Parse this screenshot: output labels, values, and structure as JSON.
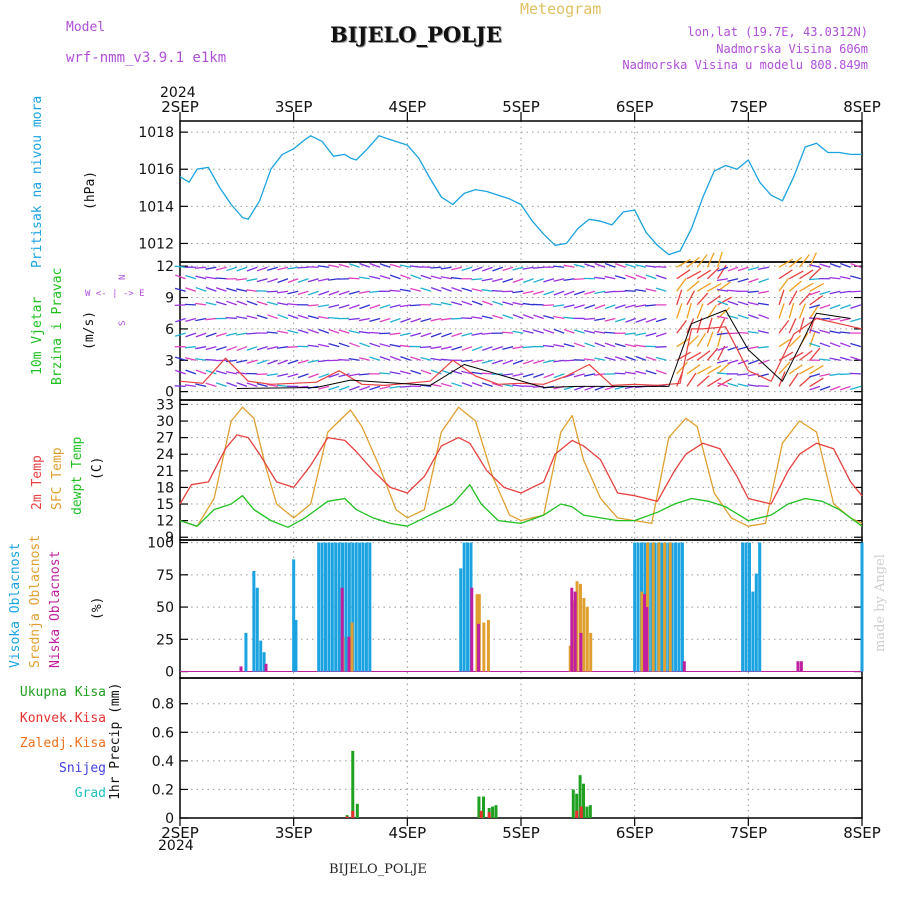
{
  "header": {
    "model_label": "Model",
    "model_name": "wrf-nmm_v3.9.1  e1km",
    "meteogram": "Meteogram",
    "station": "BIJELO_POLJE",
    "lonlat": "lon,lat (19.7E, 43.0312N)",
    "elevation": "Nadmorska Visina 606m",
    "model_elevation": "Nadmorska Visina u modelu 808.849m",
    "year_top": "2024",
    "year_bottom": "2024",
    "footer_station": "BIJELO_POLJE",
    "watermark": "made by Angel"
  },
  "panel_labels": {
    "pressure": "Pritisak na nivou mora",
    "pressure_unit": "(hPa)",
    "wind_a": "10m Vjetar",
    "wind_b": "Brzina i Pravac",
    "wind_unit": "(m/s)",
    "compass": "W <- | -> E",
    "compass_n": "N",
    "compass_s": "S",
    "temp_2m": "2m Temp",
    "temp_sfc": "SFC Temp",
    "temp_dew": "dewpt Temp",
    "temp_unit": "(C)",
    "cloud_high": "Visoka Oblacnost",
    "cloud_mid": "Srednja Oblacnost",
    "cloud_low": "Niska Oblacnost",
    "cloud_unit": "(%)",
    "precip_unit": "1hr Precip (mm)",
    "precip_total": "Ukupna Kisa",
    "precip_conv": "Konvek.Kisa",
    "precip_frz": "Zaledj.Kisa",
    "precip_snow": "Snijeg",
    "precip_grad": "Grad"
  },
  "colors": {
    "pressure": "#1aa3e0",
    "temp2m": "#e84040",
    "sfc": "#e0a030",
    "dew": "#20c020",
    "cloud_high": "#1aa3e0",
    "cloud_mid": "#e0a030",
    "cloud_low": "#c020a0",
    "precip_total": "#20a020",
    "precip_conv": "#e83030",
    "precip_frz": "#f07020",
    "precip_snow": "#4040e0",
    "precip_grad": "#20c0c0",
    "wind_speed": "#e84040",
    "wind_gust": "#000000",
    "header_text": "#b04fd8",
    "meteogram_text": "#e0c060"
  },
  "chart_data": [
    {
      "type": "line",
      "name": "pressure",
      "x_start": "2SEP",
      "x_end": "8SEP",
      "x_ticks": [
        "2SEP",
        "3SEP",
        "4SEP",
        "5SEP",
        "6SEP",
        "7SEP",
        "8SEP"
      ],
      "ylim": [
        1011,
        1018.6
      ],
      "y_ticks": [
        1012,
        1014,
        1016,
        1018
      ],
      "x": [
        0,
        0.08,
        0.15,
        0.25,
        0.35,
        0.45,
        0.55,
        0.6,
        0.7,
        0.8,
        0.9,
        1.0,
        1.1,
        1.15,
        1.25,
        1.35,
        1.45,
        1.5,
        1.55,
        1.65,
        1.75,
        1.85,
        1.95,
        2.0,
        2.1,
        2.2,
        2.3,
        2.4,
        2.5,
        2.6,
        2.7,
        2.8,
        2.9,
        3.0,
        3.1,
        3.2,
        3.3,
        3.4,
        3.5,
        3.6,
        3.7,
        3.8,
        3.9,
        4.0,
        4.1,
        4.2,
        4.3,
        4.4,
        4.5,
        4.6,
        4.7,
        4.8,
        4.9,
        5.0,
        5.1,
        5.2,
        5.3,
        5.4,
        5.5,
        5.6,
        5.7,
        5.8,
        5.9,
        6.0
      ],
      "values": [
        1015.6,
        1015.3,
        1016.0,
        1016.1,
        1015.0,
        1014.1,
        1013.4,
        1013.3,
        1014.3,
        1016.0,
        1016.8,
        1017.1,
        1017.6,
        1017.8,
        1017.5,
        1016.7,
        1016.8,
        1016.6,
        1016.5,
        1017.1,
        1017.8,
        1017.6,
        1017.4,
        1017.3,
        1016.6,
        1015.5,
        1014.5,
        1014.1,
        1014.7,
        1014.9,
        1014.8,
        1014.6,
        1014.4,
        1014.1,
        1013.2,
        1012.5,
        1011.9,
        1012.0,
        1012.8,
        1013.3,
        1013.2,
        1013.0,
        1013.7,
        1013.8,
        1012.6,
        1011.9,
        1011.4,
        1011.6,
        1012.8,
        1014.5,
        1015.9,
        1016.2,
        1016.0,
        1016.5,
        1015.3,
        1014.6,
        1014.3,
        1015.6,
        1017.2,
        1017.4,
        1016.9,
        1016.9,
        1016.8,
        1016.8
      ]
    },
    {
      "type": "line",
      "name": "wind",
      "x_start": "2SEP",
      "x_end": "8SEP",
      "x_ticks": [
        "2SEP",
        "3SEP",
        "4SEP",
        "5SEP",
        "6SEP",
        "7SEP",
        "8SEP"
      ],
      "ylim": [
        -0.8,
        12.4
      ],
      "y_ticks": [
        0,
        3,
        6,
        9,
        12
      ],
      "series": [
        {
          "name": "speed",
          "x": [
            0,
            0.2,
            0.4,
            0.6,
            0.8,
            1.0,
            1.2,
            1.4,
            1.6,
            1.8,
            2.0,
            2.2,
            2.4,
            2.6,
            2.8,
            3.0,
            3.2,
            3.4,
            3.6,
            3.8,
            4.0,
            4.2,
            4.4,
            4.5,
            4.6,
            4.8,
            5.0,
            5.2,
            5.4,
            5.6,
            5.8,
            6.0
          ],
          "values": [
            1.0,
            0.8,
            3.2,
            1.0,
            0.7,
            0.8,
            0.9,
            2.0,
            0.7,
            0.6,
            0.8,
            1.0,
            3.0,
            1.5,
            0.7,
            0.8,
            0.7,
            1.5,
            2.6,
            0.6,
            0.7,
            0.6,
            0.8,
            6.0,
            6.0,
            6.2,
            2.0,
            1.0,
            5.5,
            7.0,
            6.5,
            6.0
          ]
        },
        {
          "name": "gust",
          "x": [
            0.5,
            1.2,
            1.5,
            2.2,
            2.5,
            3.2,
            3.5,
            4.3,
            4.5,
            4.8,
            5.0,
            5.3,
            5.6,
            5.9
          ],
          "values": [
            0.3,
            0.4,
            1.1,
            0.6,
            2.6,
            0.4,
            0.5,
            0.5,
            6.5,
            7.8,
            4.0,
            1.0,
            7.5,
            7.0
          ]
        }
      ]
    },
    {
      "type": "line",
      "name": "temperature",
      "x_start": "2SEP",
      "x_end": "8SEP",
      "x_ticks": [
        "2SEP",
        "3SEP",
        "4SEP",
        "5SEP",
        "6SEP",
        "7SEP",
        "8SEP"
      ],
      "ylim": [
        8.5,
        33.8
      ],
      "y_ticks": [
        9,
        12,
        15,
        18,
        21,
        24,
        27,
        30,
        33
      ],
      "series": [
        {
          "name": "2m",
          "x": [
            0,
            0.1,
            0.25,
            0.4,
            0.5,
            0.6,
            0.7,
            0.85,
            1.0,
            1.15,
            1.3,
            1.45,
            1.55,
            1.7,
            1.85,
            2.0,
            2.15,
            2.3,
            2.45,
            2.55,
            2.7,
            2.85,
            3.0,
            3.2,
            3.3,
            3.45,
            3.55,
            3.7,
            3.85,
            4.0,
            4.2,
            4.35,
            4.45,
            4.6,
            4.75,
            4.9,
            5.0,
            5.2,
            5.35,
            5.45,
            5.6,
            5.75,
            5.9,
            6.0
          ],
          "values": [
            15.0,
            18.5,
            19.0,
            25.0,
            27.5,
            27.0,
            24.0,
            19.0,
            18.0,
            22.0,
            27.0,
            26.5,
            24.5,
            21.0,
            18.0,
            17.0,
            20.0,
            25.5,
            27.0,
            26.0,
            21.0,
            18.0,
            17.0,
            19.0,
            24.0,
            26.5,
            25.5,
            23.0,
            17.0,
            16.5,
            15.5,
            21.0,
            24.0,
            26.0,
            25.0,
            20.0,
            16.0,
            15.0,
            21.0,
            24.0,
            26.0,
            25.0,
            19.0,
            16.5
          ]
        },
        {
          "name": "sfc",
          "x": [
            0,
            0.15,
            0.3,
            0.45,
            0.55,
            0.65,
            0.75,
            0.85,
            1.0,
            1.15,
            1.3,
            1.4,
            1.5,
            1.6,
            1.75,
            1.9,
            2.0,
            2.15,
            2.3,
            2.45,
            2.6,
            2.75,
            2.9,
            3.0,
            3.2,
            3.35,
            3.45,
            3.55,
            3.7,
            3.85,
            4.0,
            4.15,
            4.3,
            4.45,
            4.55,
            4.7,
            4.85,
            5.0,
            5.15,
            5.3,
            5.45,
            5.6,
            5.75,
            5.9,
            6.0
          ],
          "values": [
            12.0,
            11.0,
            16.0,
            30.0,
            32.5,
            30.5,
            22.0,
            15.0,
            12.5,
            15.0,
            28.0,
            30.0,
            32.0,
            29.0,
            22.0,
            14.0,
            12.5,
            14.0,
            28.0,
            32.5,
            30.0,
            20.0,
            13.0,
            12.0,
            13.0,
            28.0,
            31.0,
            23.0,
            16.0,
            12.5,
            12.0,
            11.5,
            27.0,
            30.5,
            29.0,
            17.0,
            12.5,
            11.0,
            11.5,
            26.0,
            30.0,
            28.0,
            15.0,
            12.5,
            11.5
          ]
        },
        {
          "name": "dewpt",
          "x": [
            0,
            0.15,
            0.3,
            0.45,
            0.55,
            0.65,
            0.8,
            0.95,
            1.1,
            1.3,
            1.45,
            1.55,
            1.7,
            1.85,
            2.0,
            2.2,
            2.4,
            2.55,
            2.65,
            2.8,
            3.0,
            3.2,
            3.35,
            3.45,
            3.55,
            3.7,
            3.85,
            4.0,
            4.2,
            4.35,
            4.5,
            4.65,
            4.8,
            5.0,
            5.2,
            5.35,
            5.5,
            5.65,
            5.8,
            6.0
          ],
          "values": [
            12.0,
            11.0,
            14.0,
            15.0,
            16.5,
            14.0,
            12.0,
            10.8,
            12.5,
            15.5,
            16.0,
            14.0,
            12.5,
            11.5,
            11.0,
            13.0,
            15.0,
            18.5,
            15.0,
            12.0,
            11.5,
            13.0,
            15.0,
            14.5,
            13.0,
            12.5,
            12.0,
            12.0,
            13.5,
            15.0,
            16.0,
            15.5,
            14.5,
            12.0,
            13.0,
            15.0,
            16.0,
            15.5,
            14.0,
            11.0
          ]
        }
      ]
    },
    {
      "type": "bar",
      "name": "clouds",
      "x_start": "2SEP",
      "x_end": "8SEP",
      "x_ticks": [
        "2SEP",
        "3SEP",
        "4SEP",
        "5SEP",
        "6SEP",
        "7SEP",
        "8SEP"
      ],
      "ylim": [
        -5,
        102
      ],
      "y_ticks": [
        0,
        25,
        50,
        75,
        100
      ],
      "series": [
        {
          "name": "high",
          "x": [
            0.58,
            0.65,
            0.68,
            0.71,
            0.74,
            1.0,
            1.02,
            1.22,
            1.25,
            1.28,
            1.31,
            1.34,
            1.37,
            1.4,
            1.43,
            1.46,
            1.49,
            1.52,
            1.55,
            1.58,
            1.61,
            1.64,
            1.67,
            2.47,
            2.5,
            2.53,
            2.56,
            4.0,
            4.03,
            4.06,
            4.09,
            4.12,
            4.15,
            4.18,
            4.21,
            4.24,
            4.27,
            4.3,
            4.33,
            4.36,
            4.39,
            4.42,
            4.95,
            4.98,
            5.01,
            5.04,
            5.07,
            5.1,
            6.0
          ],
          "values": [
            30,
            78,
            65,
            24,
            15,
            87,
            40,
            100,
            100,
            100,
            100,
            100,
            100,
            100,
            100,
            100,
            100,
            100,
            100,
            100,
            100,
            100,
            100,
            80,
            100,
            100,
            100,
            100,
            100,
            100,
            100,
            100,
            100,
            100,
            100,
            100,
            100,
            100,
            100,
            100,
            100,
            100,
            100,
            100,
            100,
            62,
            76,
            100,
            100
          ]
        },
        {
          "name": "mid",
          "x": [
            1.42,
            1.5,
            2.6,
            2.62,
            2.66,
            2.7,
            3.42,
            3.45,
            3.48,
            3.51,
            3.54,
            3.57,
            3.6,
            4.05,
            4.1,
            4.15,
            4.2,
            4.25,
            4.3
          ],
          "values": [
            27,
            38,
            60,
            60,
            38,
            40,
            20,
            55,
            70,
            68,
            57,
            50,
            30,
            62,
            100,
            100,
            100,
            100,
            100
          ]
        },
        {
          "name": "low",
          "x": [
            0.55,
            0.77,
            1.44,
            1.5,
            2.58,
            2.64,
            3.46,
            3.49,
            3.54,
            4.1,
            4.12,
            4.45,
            5.45,
            5.48
          ],
          "values": [
            4,
            6,
            65,
            27,
            65,
            37,
            65,
            62,
            30,
            60,
            50,
            8,
            8,
            8
          ]
        }
      ]
    },
    {
      "type": "bar",
      "name": "precipitation",
      "x_start": "2SEP",
      "x_end": "8SEP",
      "x_ticks": [
        "2SEP",
        "3SEP",
        "4SEP",
        "5SEP",
        "6SEP",
        "7SEP",
        "8SEP"
      ],
      "ylim": [
        0,
        0.98
      ],
      "y_ticks": [
        0,
        0.2,
        0.4,
        0.6,
        0.8
      ],
      "series": [
        {
          "name": "total",
          "x": [
            1.47,
            1.52,
            1.56,
            2.63,
            2.67,
            2.72,
            2.75,
            2.78,
            3.46,
            3.49,
            3.52,
            3.55,
            3.58,
            3.61
          ],
          "values": [
            0.02,
            0.47,
            0.1,
            0.15,
            0.15,
            0.07,
            0.08,
            0.09,
            0.2,
            0.17,
            0.3,
            0.24,
            0.08,
            0.09
          ]
        },
        {
          "name": "convective",
          "x": [
            1.47,
            1.52,
            2.65,
            2.72,
            3.49,
            3.53
          ],
          "values": [
            0.01,
            0.05,
            0.05,
            0.04,
            0.05,
            0.08
          ]
        }
      ]
    }
  ]
}
